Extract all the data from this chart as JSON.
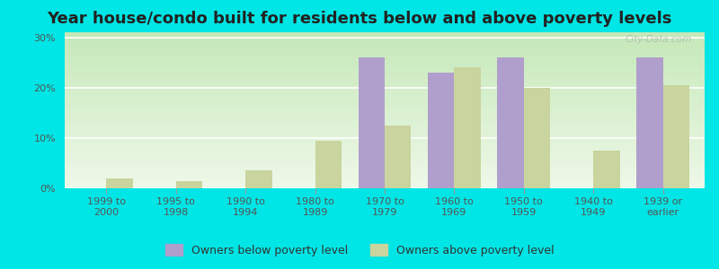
{
  "title": "Year house/condo built for residents below and above poverty levels",
  "categories": [
    "1999 to\n2000",
    "1995 to\n1998",
    "1990 to\n1994",
    "1980 to\n1989",
    "1970 to\n1979",
    "1960 to\n1969",
    "1950 to\n1959",
    "1940 to\n1949",
    "1939 or\nearlier"
  ],
  "below_poverty": [
    0.0,
    0.0,
    0.0,
    0.0,
    26.0,
    23.0,
    26.0,
    0.0,
    26.0
  ],
  "above_poverty": [
    2.0,
    1.5,
    3.5,
    9.5,
    12.5,
    24.0,
    20.0,
    7.5,
    20.5
  ],
  "below_color": "#b09fcc",
  "above_color": "#c9d49e",
  "grid_color": "#ffffff",
  "outer_bg": "#00e5e5",
  "grad_top": "#c5e8b8",
  "grad_bottom": "#eef8e8",
  "ylim": [
    0,
    31
  ],
  "yticks": [
    0,
    10,
    20,
    30
  ],
  "ytick_labels": [
    "0%",
    "10%",
    "20%",
    "30%"
  ],
  "bar_width": 0.38,
  "legend_below_label": "Owners below poverty level",
  "legend_above_label": "Owners above poverty level",
  "title_fontsize": 13,
  "tick_fontsize": 8,
  "legend_fontsize": 9,
  "watermark": "City-Data.com"
}
